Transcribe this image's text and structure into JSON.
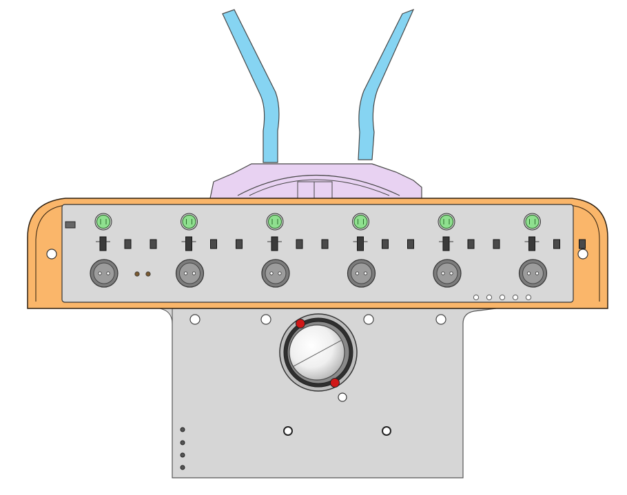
{
  "scene": {
    "kind": "cad-render",
    "view": "front",
    "background": "#ffffff"
  },
  "colors": {
    "bracket": "#fab66a",
    "bracket_edge": "#2b1d0e",
    "faceplate": "#d8d8d8",
    "base_plate": "#d6d6d6",
    "clip_arms": "#86d4f2",
    "clip_mount": "#e8d2f2",
    "led_green": "#8fe08f",
    "button_gray": "#9c9c9c",
    "trackball": "#f2f2f2",
    "trackball_bearing": "#d01818",
    "outline": "#333333"
  },
  "parts": {
    "led_count": 6,
    "button_count": 6,
    "switch_groups": 6,
    "small_holes_right": 5,
    "side_holes_left": 4,
    "mount_holes_top": 4,
    "mount_holes_bottom": 2
  },
  "icons": {
    "trackball": "trackball-icon",
    "led": "led-icon",
    "button": "push-button-icon"
  }
}
